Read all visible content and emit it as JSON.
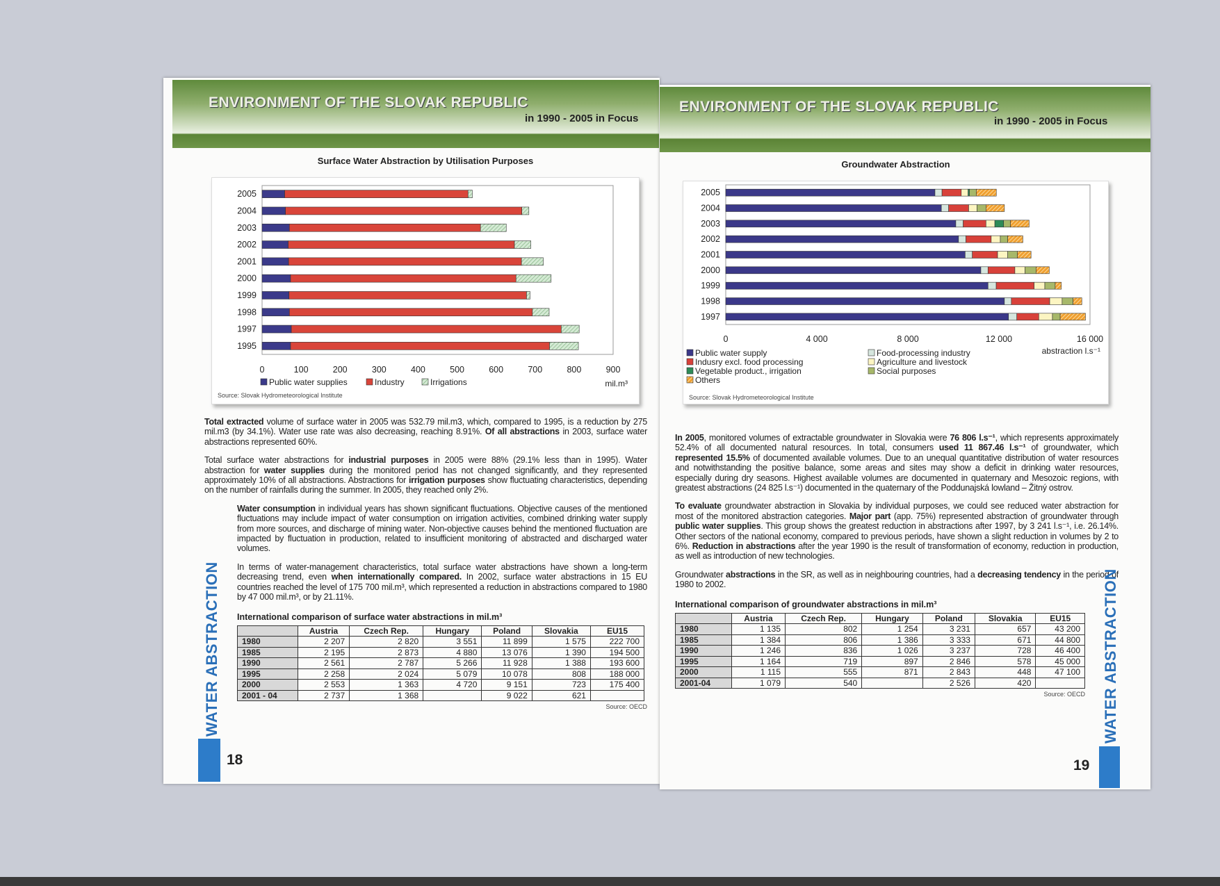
{
  "header": {
    "title": "ENVIRONMENT OF THE SLOVAK REPUBLIC",
    "subtitle": "in 1990 - 2005 in Focus"
  },
  "left_page": {
    "page_number": "18",
    "side_label": "WATER ABSTRACTION",
    "chart_source": "Source: Slovak Hydrometeorological Institute",
    "paragraphs": [
      [
        {
          "b": true,
          "t": "Total extracted"
        },
        {
          "t": " volume of surface water in 2005 was 532.79 mil.m3, which, compared to 1995, is a reduction by 275 mil.m3 (by 34.1%). Water use rate was also decreasing, reaching 8.91%. "
        },
        {
          "b": true,
          "t": "Of all abstractions"
        },
        {
          "t": " in 2003, surface water abstractions represented 60%."
        }
      ],
      [
        {
          "t": "Total surface water abstractions for "
        },
        {
          "b": true,
          "t": "industrial purposes"
        },
        {
          "t": " in 2005 were 88% (29.1% less than in 1995). Water abstraction for "
        },
        {
          "b": true,
          "t": "water supplies"
        },
        {
          "t": " during the monitored period has not changed significantly, and they represented approximately 10% of all abstractions. Abstractions for "
        },
        {
          "b": true,
          "t": "irrigation purposes"
        },
        {
          "t": " show fluctuating characteristics, depending on the number of rainfalls during the summer. In 2005, they reached only 2%."
        }
      ],
      [
        {
          "b": true,
          "t": "Water consumption"
        },
        {
          "t": " in individual years has shown significant fluctuations. Objective causes of the mentioned fluctuations may include impact of water consumption on irrigation activities, combined drinking water supply from more sources, and discharge of mining water.  Non-objective causes behind the mentioned fluctuation are impacted by fluctuation in production, related to insufficient monitoring of abstracted and discharged water volumes."
        }
      ],
      [
        {
          "t": "In terms of water-management characteristics, total surface water abstractions have shown a long-term decreasing trend, even "
        },
        {
          "b": true,
          "t": "when internationally compared."
        },
        {
          "t": " In 2002, surface water abstractions in 15 EU countries reached the level of 175 700 mil.m³, which represented a reduction in abstractions compared to 1980 by 47 000 mil.m³, or by 21.11%."
        }
      ]
    ],
    "table": {
      "title": "International comparison of surface water abstractions in mil.m³",
      "columns": [
        "",
        "Austria",
        "Czech Rep.",
        "Hungary",
        "Poland",
        "Slovakia",
        "EU15"
      ],
      "rows": [
        [
          "1980",
          "2 207",
          "2 820",
          "3 551",
          "11 899",
          "1 575",
          "222 700"
        ],
        [
          "1985",
          "2 195",
          "2 873",
          "4 880",
          "13 076",
          "1 390",
          "194 500"
        ],
        [
          "1990",
          "2 561",
          "2 787",
          "5 266",
          "11 928",
          "1 388",
          "193 600"
        ],
        [
          "1995",
          "2 258",
          "2 024",
          "5 079",
          "10 078",
          "808",
          "188 000"
        ],
        [
          "2000",
          "2 553",
          "1 363",
          "4 720",
          "9 151",
          "723",
          "175 400"
        ],
        [
          "2001 - 04",
          "2 737",
          "1 368",
          "",
          "9 022",
          "621",
          ""
        ]
      ],
      "source": "Source: OECD"
    }
  },
  "right_page": {
    "page_number": "19",
    "side_label": "WATER ABSTRACTION",
    "chart_source": "Source: Slovak Hydrometeorological Institute",
    "paragraphs": [
      [
        {
          "b": true,
          "t": "In 2005"
        },
        {
          "t": ", monitored volumes of extractable groundwater in Slovakia were "
        },
        {
          "b": true,
          "t": "76 806 l.s⁻¹"
        },
        {
          "t": ", which represents approximately 52.4% of all documented natural resources. In total, consumers "
        },
        {
          "b": true,
          "t": "used 11 867.46 l.s⁻¹"
        },
        {
          "t": " of groundwater, which "
        },
        {
          "b": true,
          "t": "represented 15.5%"
        },
        {
          "t": " of documented available volumes. Due to an unequal quantitative distribution of water resources and notwithstanding the positive balance, some areas and sites may show a deficit in drinking water resources, especially during dry seasons. Highest available volumes are documented in quaternary and Mesozoic regions, with greatest abstractions (24 825 l.s⁻¹) documented in the quaternary of the Poddunajská lowland – Žitný ostrov."
        }
      ],
      [
        {
          "b": true,
          "t": "To evaluate"
        },
        {
          "t": " groundwater abstraction in Slovakia by individual purposes, we could see reduced water abstraction for most of the monitored abstraction categories. "
        },
        {
          "b": true,
          "t": "Major part"
        },
        {
          "t": " (app. 75%) represented abstraction of groundwater through "
        },
        {
          "b": true,
          "t": "public water supplies"
        },
        {
          "t": ".  This group shows the greatest reduction in abstractions after 1997, by 3 241 l.s⁻¹, i.e. 26.14%. Other sectors of the national economy, compared to previous periods, have shown a slight reduction in volumes by 2 to 6%. "
        },
        {
          "b": true,
          "t": "Reduction in abstractions"
        },
        {
          "t": " after the year 1990 is the result of transformation of economy, reduction in production, as well as introduction of new technologies."
        }
      ],
      [
        {
          "t": "Groundwater "
        },
        {
          "b": true,
          "t": "abstractions"
        },
        {
          "t": " in the SR, as well as in neighbouring countries, had a "
        },
        {
          "b": true,
          "t": "decreasing tendency"
        },
        {
          "t": " in the period of 1980 to 2002."
        }
      ]
    ],
    "table": {
      "title": "International comparison of groundwater abstractions in mil.m³",
      "columns": [
        "",
        "Austria",
        "Czech Rep.",
        "Hungary",
        "Poland",
        "Slovakia",
        "EU15"
      ],
      "rows": [
        [
          "1980",
          "1 135",
          "802",
          "1 254",
          "3 231",
          "657",
          "43 200"
        ],
        [
          "1985",
          "1 384",
          "806",
          "1 386",
          "3 333",
          "671",
          "44 800"
        ],
        [
          "1990",
          "1 246",
          "836",
          "1 026",
          "3 237",
          "728",
          "46 400"
        ],
        [
          "1995",
          "1 164",
          "719",
          "897",
          "2 846",
          "578",
          "45 000"
        ],
        [
          "2000",
          "1 115",
          "555",
          "871",
          "2 843",
          "448",
          "47 100"
        ],
        [
          "2001-04",
          "1 079",
          "540",
          "",
          "2 526",
          "420",
          ""
        ]
      ],
      "source": "Source: OECD"
    }
  },
  "chart_data": [
    {
      "type": "bar",
      "orientation": "horizontal",
      "stacked": true,
      "title": "Surface Water Abstraction by Utilisation Purposes",
      "unit_label": "mil.m³",
      "categories": [
        "2005",
        "2004",
        "2003",
        "2002",
        "2001",
        "2000",
        "1999",
        "1998",
        "1997",
        "1995"
      ],
      "xlim": [
        0,
        900
      ],
      "xticks": [
        "0",
        "100",
        "200",
        "300",
        "400",
        "500",
        "600",
        "700",
        "800",
        "900"
      ],
      "grid": false,
      "legend_placement": "bottom",
      "series": [
        {
          "name": "Public water supplies",
          "color": "#3b3a8a",
          "values": [
            58,
            60,
            70,
            67,
            68,
            73,
            69,
            70,
            75,
            73
          ]
        },
        {
          "name": "Industry",
          "color": "#d9453a",
          "values": [
            470,
            606,
            490,
            580,
            597,
            578,
            609,
            623,
            692,
            664
          ]
        },
        {
          "name": "Irrigations",
          "color": "#d4ead4",
          "pattern": "hatch",
          "values": [
            11,
            18,
            66,
            42,
            56,
            90,
            9,
            43,
            46,
            74
          ]
        }
      ]
    },
    {
      "type": "bar",
      "orientation": "horizontal",
      "stacked": true,
      "title": "Groundwater Abstraction",
      "unit_label": "abstraction  l.s⁻¹",
      "categories": [
        "2005",
        "2004",
        "2003",
        "2002",
        "2001",
        "2000",
        "1999",
        "1998",
        "1997"
      ],
      "xlim": [
        0,
        16000
      ],
      "xticks": [
        "0",
        "4 000",
        "8 000",
        "12 000",
        "16 000"
      ],
      "grid": false,
      "legend_placement": "bottom",
      "series": [
        {
          "name": "Public water supply",
          "color": "#3b3889",
          "values": [
            9190,
            9470,
            10105,
            10225,
            10515,
            11205,
            11520,
            12240,
            12420
          ]
        },
        {
          "name": "Food-processing industry",
          "color": "#d6e6de",
          "values": [
            310,
            320,
            325,
            325,
            315,
            315,
            360,
            305,
            365
          ]
        },
        {
          "name": "Indusry excl. food processing",
          "color": "#d8413a",
          "values": [
            845,
            880,
            1000,
            1110,
            1110,
            1180,
            1665,
            1685,
            965
          ]
        },
        {
          "name": "Agriculture and livestock",
          "color": "#fcf5c2",
          "values": [
            300,
            365,
            390,
            400,
            445,
            445,
            470,
            545,
            600
          ]
        },
        {
          "name": "Vegetable product., irrigation",
          "color": "#2e8b57",
          "values": [
            60,
            0,
            385,
            0,
            0,
            0,
            0,
            0,
            0
          ]
        },
        {
          "name": "Social purposes",
          "color": "#a7b86a",
          "values": [
            300,
            395,
            300,
            325,
            425,
            485,
            455,
            480,
            340
          ]
        },
        {
          "name": "Others",
          "color": "#f0a030",
          "pattern": "hatch",
          "values": [
            880,
            810,
            820,
            665,
            600,
            580,
            270,
            385,
            1110
          ]
        }
      ]
    }
  ]
}
